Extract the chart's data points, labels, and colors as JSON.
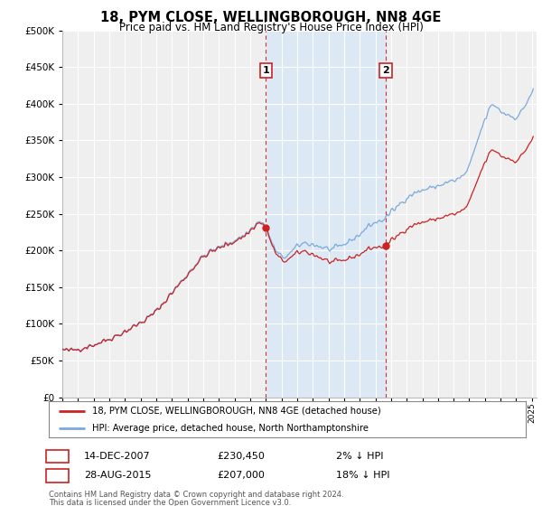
{
  "title": "18, PYM CLOSE, WELLINGBOROUGH, NN8 4GE",
  "subtitle": "Price paid vs. HM Land Registry's House Price Index (HPI)",
  "ylim": [
    0,
    500000
  ],
  "yticks": [
    0,
    50000,
    100000,
    150000,
    200000,
    250000,
    300000,
    350000,
    400000,
    450000,
    500000
  ],
  "ytick_labels": [
    "£0",
    "£50K",
    "£100K",
    "£150K",
    "£200K",
    "£250K",
    "£300K",
    "£350K",
    "£400K",
    "£450K",
    "£500K"
  ],
  "xlim_start": 1995.0,
  "xlim_end": 2025.3,
  "background_color": "#ffffff",
  "plot_bg_color": "#efefef",
  "grid_color": "#ffffff",
  "hpi_color": "#7aaadd",
  "price_color": "#cc2222",
  "shade_color": "#dce8f4",
  "vline_color": "#cc3333",
  "vline1_x": 2008.0,
  "vline2_x": 2015.67,
  "point1_x": 2008.0,
  "point1_y": 230450,
  "point1_label": "1",
  "point2_x": 2015.67,
  "point2_y": 207000,
  "point2_label": "2",
  "annotation_box_color": "#cc2222",
  "legend_label1": "18, PYM CLOSE, WELLINGBOROUGH, NN8 4GE (detached house)",
  "legend_label2": "HPI: Average price, detached house, North Northamptonshire",
  "footer1": "Contains HM Land Registry data © Crown copyright and database right 2024.",
  "footer2": "This data is licensed under the Open Government Licence v3.0.",
  "table_row1": [
    "1",
    "14-DEC-2007",
    "£230,450",
    "2% ↓ HPI"
  ],
  "table_row2": [
    "2",
    "28-AUG-2015",
    "£207,000",
    "18% ↓ HPI"
  ]
}
